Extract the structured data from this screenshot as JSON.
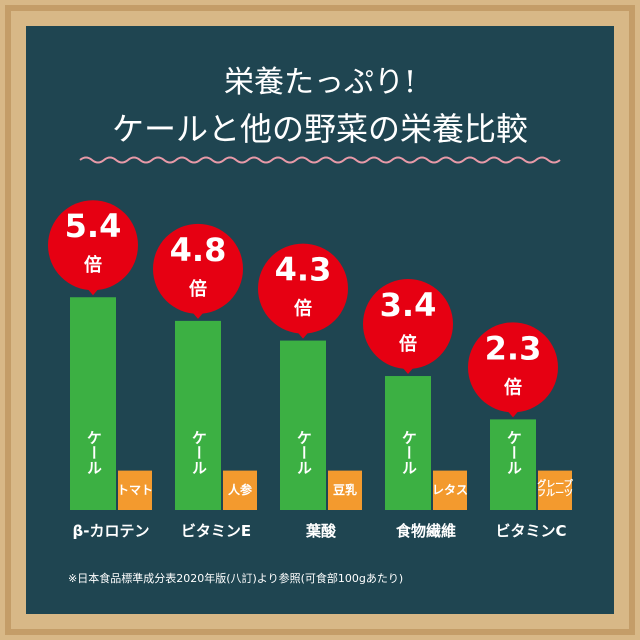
{
  "chart_data": {
    "type": "bar",
    "title": [
      "栄養たっぷり!",
      "ケールと他の野菜の栄養比較"
    ],
    "categories": [
      "β-カロテン",
      "ビタミンE",
      "葉酸",
      "食物繊維",
      "ビタミンC"
    ],
    "unit": "倍",
    "series": [
      {
        "name": "ケール",
        "color": "#3cb043",
        "values": [
          5.4,
          4.8,
          4.3,
          3.4,
          2.3
        ]
      },
      {
        "color": "#f39a2e",
        "values": [
          1,
          1,
          1,
          1,
          1
        ],
        "labels": [
          "トマト",
          "人参",
          "豆乳",
          "レタス",
          "グレープ\nフルーツ"
        ]
      }
    ],
    "bubble_color": "#e60012",
    "note": "※日本食品標準成分表2020年版(八訂)より参照(可食部100gあたり)"
  }
}
